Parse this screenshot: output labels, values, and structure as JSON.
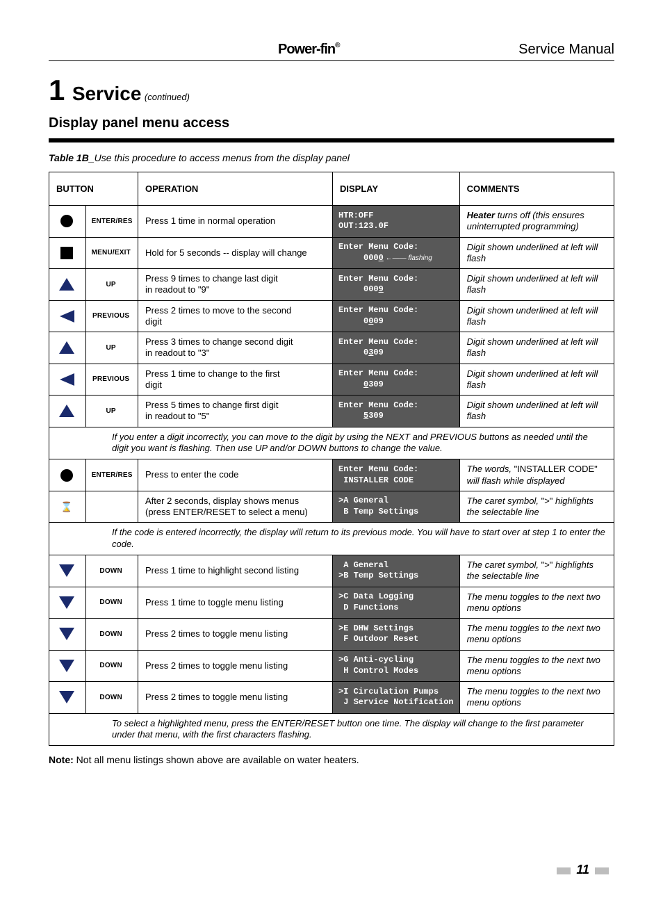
{
  "header": {
    "brand": "Power-fin",
    "brand_sup": "®",
    "manual": "Service Manual"
  },
  "section": {
    "number": "1",
    "title": "Service",
    "continued": "(continued)",
    "subhead": "Display panel menu access"
  },
  "table_caption": {
    "label": "Table 1B_",
    "desc": "Use this procedure to access menus from the display panel"
  },
  "columns": {
    "button": "BUTTON",
    "operation": "OPERATION",
    "display": "DISPLAY",
    "comments": "COMMENTS"
  },
  "rows": [
    {
      "icon": "circle",
      "btn": "ENTER/RES",
      "op": "Press 1 time in normal operation",
      "disp_l1": "HTR:OFF",
      "disp_l2": "OUT:123.0F",
      "com": "<b>Heater</b> turns off (this ensures uninterrupted programming)"
    },
    {
      "icon": "square",
      "btn": "MENU/EXIT",
      "op": "Hold for 5 seconds -- display will change",
      "disp_l1": "Enter Menu Code:",
      "disp_l2": "     000",
      "disp_ul": "0",
      "disp_note": " ←—— flashing",
      "com": "Digit shown underlined at left will flash"
    },
    {
      "icon": "up",
      "btn": "UP",
      "op": "Press 9 times to change last digit\nin readout to \"9\"",
      "disp_l1": "Enter Menu Code:",
      "disp_l2": "     000",
      "disp_ul": "9",
      "com": "Digit shown underlined at left will flash"
    },
    {
      "icon": "left",
      "btn": "PREVIOUS",
      "op": "Press 2 times to move to the second\ndigit",
      "disp_l1": "Enter Menu Code:",
      "disp_l2": "     0",
      "disp_ul": "0",
      "disp_after": "09",
      "com": "Digit shown underlined at left will flash"
    },
    {
      "icon": "up",
      "btn": "UP",
      "op": "Press 3 times to change second digit\nin readout to \"3\"",
      "disp_l1": "Enter Menu Code:",
      "disp_l2": "     0",
      "disp_ul": "3",
      "disp_after": "09",
      "com": "Digit shown underlined at left will flash"
    },
    {
      "icon": "left",
      "btn": "PREVIOUS",
      "op": "Press 1 time to change to the first\ndigit",
      "disp_l1": "Enter Menu Code:",
      "disp_l2": "     ",
      "disp_ul": "0",
      "disp_after": "309",
      "com": "Digit shown underlined at left will flash"
    },
    {
      "icon": "up",
      "btn": "UP",
      "op": "Press 5 times to change first digit\nin readout to \"5\"",
      "disp_l1": "Enter Menu Code:",
      "disp_l2": "     ",
      "disp_ul": "5",
      "disp_after": "309",
      "com": "Digit shown underlined at left will flash"
    },
    {
      "spanner": "If you enter a digit incorrectly, you can move to the digit by using the NEXT and PREVIOUS buttons as needed until the digit you want is flashing. Then use UP and/or DOWN buttons to change the value."
    },
    {
      "icon": "circle",
      "btn": "ENTER/RES",
      "op": "Press to enter the code",
      "disp_l1": "Enter Menu Code:",
      "disp_l2": " INSTALLER CODE",
      "com": "The words, <span class=\"noit\">\"INSTALLER CODE\"</span> will flash while displayed"
    },
    {
      "icon": "hourglass",
      "btn": "",
      "op": "After 2 seconds, display shows menus\n(press ENTER/RESET to select a menu)",
      "disp_l1": ">A General",
      "disp_l2": " B Temp Settings",
      "com": "The caret symbol, <span class=\"noit\">\">\"</span> highlights the selectable line"
    },
    {
      "spanner": "If the code is entered incorrectly, the display will return to its previous mode. You will have to start over at step 1 to enter the code."
    },
    {
      "icon": "down",
      "btn": "DOWN",
      "op": "Press 1 time to highlight second listing",
      "disp_l1": " A General",
      "disp_l2": ">B Temp Settings",
      "com": "The caret symbol, <span class=\"noit\">\">\"</span> highlights the selectable line"
    },
    {
      "icon": "down",
      "btn": "DOWN",
      "op": "Press 1 time to toggle menu listing",
      "disp_l1": ">C Data Logging",
      "disp_l2": " D Functions",
      "com": "The menu toggles to the next two menu options"
    },
    {
      "icon": "down",
      "btn": "DOWN",
      "op": "Press 2 times to toggle menu listing",
      "disp_l1": ">E DHW Settings",
      "disp_l2": " F Outdoor Reset",
      "com": "The menu toggles to the next two menu options"
    },
    {
      "icon": "down",
      "btn": "DOWN",
      "op": "Press 2 times to toggle menu listing",
      "disp_l1": ">G Anti-cycling",
      "disp_l2": " H Control Modes",
      "com": "The menu toggles to the next two menu options"
    },
    {
      "icon": "down",
      "btn": "DOWN",
      "op": "Press 2 times to toggle menu listing",
      "disp_l1": ">I Circulation Pumps",
      "disp_l2": " J Service Notification",
      "com": "The menu toggles to the next two menu options"
    },
    {
      "spanner": "To select a highlighted menu, press the ENTER/RESET button one time. The display will change to the first parameter under that menu, with the first characters flashing."
    }
  ],
  "footnote": {
    "label": "Note:",
    "text": "Not all menu listings shown above are available on water heaters."
  },
  "page_number": "11",
  "colors": {
    "display_bg": "#585858",
    "page_marker": "#bdbdbd",
    "nav_fill": "#1a2a6c"
  }
}
